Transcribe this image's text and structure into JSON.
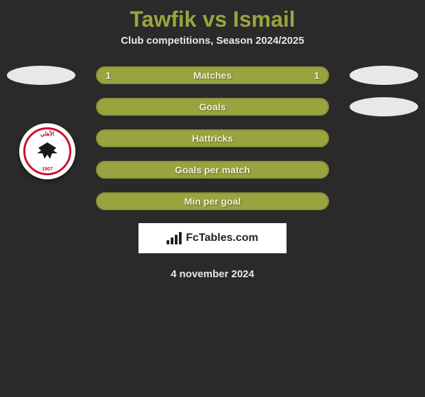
{
  "title": {
    "player1": "Tawfik",
    "vs": "vs",
    "player2": "Ismail",
    "full": "Tawfik vs Ismail",
    "color": "#9aa43f",
    "fontsize": 32
  },
  "subtitle": "Club competitions, Season 2024/2025",
  "stats": {
    "bar_color": "#9aa43f",
    "bar_border": "#8b9238",
    "text_color": "#eef0d4",
    "rows": [
      {
        "label": "Matches",
        "left": "1",
        "right": "1",
        "show_left_pill": true,
        "show_right_pill": true
      },
      {
        "label": "Goals",
        "left": "",
        "right": "",
        "show_left_pill": false,
        "show_right_pill": true
      },
      {
        "label": "Hattricks",
        "left": "",
        "right": "",
        "show_left_pill": false,
        "show_right_pill": false
      },
      {
        "label": "Goals per match",
        "left": "",
        "right": "",
        "show_left_pill": false,
        "show_right_pill": false
      },
      {
        "label": "Min per goal",
        "left": "",
        "right": "",
        "show_left_pill": false,
        "show_right_pill": false
      }
    ]
  },
  "badge": {
    "top_text": "الأهلي",
    "bottom_text": "1907",
    "border_color": "#c8102e",
    "bg": "#ffffff",
    "eagle_color": "#1a1a1a"
  },
  "branding": "FcTables.com",
  "date": "4 november 2024",
  "background": "#2a2a2a",
  "pill_color": "#e8e8e8"
}
